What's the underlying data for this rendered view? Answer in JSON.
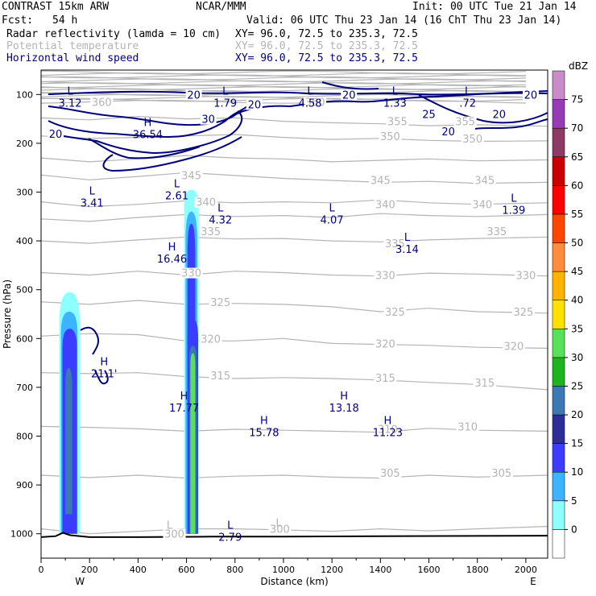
{
  "header": {
    "model": "CONTRAST 15km ARW",
    "center": "NCAR/MMM",
    "init": "Init: 00 UTC Tue 21 Jan 14",
    "fcst_label": "Fcst:",
    "fcst_value": "54 h",
    "valid": "Valid: 06 UTC Thu 23 Jan 14 (16 ChT Thu 23 Jan 14)",
    "fields": [
      {
        "name": "Radar reflectivity (lamda = 10 cm)",
        "xy": "XY=  96.0, 72.5 to 235.3, 72.5",
        "color": "#000000"
      },
      {
        "name": "Potential temperature",
        "xy": "XY=  96.0, 72.5 to 235.3, 72.5",
        "color": "#b4b4b4"
      },
      {
        "name": "Horizontal wind speed",
        "xy": "XY=  96.0, 72.5 to 235.3, 72.5",
        "color": "#00007a"
      }
    ]
  },
  "chart_data": {
    "type": "cross-section",
    "xlabel": "Distance (km)",
    "ylabel": "Pressure (hPa)",
    "xlim": [
      0,
      2090
    ],
    "ylim": [
      1050,
      50
    ],
    "x_ticks": [
      0,
      200,
      400,
      600,
      800,
      1000,
      1200,
      1400,
      1600,
      1800,
      2000
    ],
    "y_ticks": [
      100,
      200,
      300,
      400,
      500,
      600,
      700,
      800,
      900,
      1000
    ],
    "x_end_labels": {
      "left": "W",
      "right": "E"
    },
    "colorbar": {
      "unit": "dBZ",
      "levels": [
        0,
        5,
        10,
        15,
        20,
        25,
        30,
        35,
        40,
        45,
        50,
        55,
        60,
        65,
        70,
        75
      ],
      "colors": [
        "#ffffff",
        "#8effff",
        "#3cb4ff",
        "#3c3cff",
        "#2d2d96",
        "#3c78b4",
        "#1eb41e",
        "#5ae15a",
        "#ffe100",
        "#ffb400",
        "#ff8c3c",
        "#ff4600",
        "#ff0000",
        "#c80000",
        "#8c3c64",
        "#963cb4",
        "#c88cc8"
      ]
    },
    "theta_labels": [
      {
        "v": "360",
        "x": 250,
        "p": 120
      },
      {
        "v": "360",
        "x": 1130,
        "p": 120
      },
      {
        "v": "355",
        "x": 1470,
        "p": 160
      },
      {
        "v": "355",
        "x": 1750,
        "p": 160
      },
      {
        "v": "350",
        "x": 1440,
        "p": 190
      },
      {
        "v": "350",
        "x": 1780,
        "p": 195
      },
      {
        "v": "345",
        "x": 620,
        "p": 270
      },
      {
        "v": "345",
        "x": 1400,
        "p": 280
      },
      {
        "v": "345",
        "x": 1830,
        "p": 280
      },
      {
        "v": "340",
        "x": 680,
        "p": 325
      },
      {
        "v": "340",
        "x": 1420,
        "p": 330
      },
      {
        "v": "340",
        "x": 1820,
        "p": 330
      },
      {
        "v": "335",
        "x": 700,
        "p": 385
      },
      {
        "v": "335",
        "x": 1460,
        "p": 410
      },
      {
        "v": "335",
        "x": 1880,
        "p": 385
      },
      {
        "v": "330",
        "x": 620,
        "p": 470
      },
      {
        "v": "330",
        "x": 1420,
        "p": 475
      },
      {
        "v": "330",
        "x": 2000,
        "p": 475
      },
      {
        "v": "325",
        "x": 740,
        "p": 530
      },
      {
        "v": "325",
        "x": 1460,
        "p": 550
      },
      {
        "v": "325",
        "x": 1990,
        "p": 550
      },
      {
        "v": "320",
        "x": 700,
        "p": 605
      },
      {
        "v": "320",
        "x": 1420,
        "p": 615
      },
      {
        "v": "320",
        "x": 1950,
        "p": 620
      },
      {
        "v": "315",
        "x": 740,
        "p": 680
      },
      {
        "v": "315",
        "x": 1420,
        "p": 685
      },
      {
        "v": "315",
        "x": 1830,
        "p": 695
      },
      {
        "v": "310",
        "x": 1430,
        "p": 790
      },
      {
        "v": "310",
        "x": 1760,
        "p": 785
      },
      {
        "v": "305",
        "x": 1440,
        "p": 880
      },
      {
        "v": "305",
        "x": 1900,
        "p": 880
      },
      {
        "v": "300",
        "x": 550,
        "p": 1005
      },
      {
        "v": "300",
        "x": 985,
        "p": 995
      }
    ],
    "extrema": [
      {
        "t": "L",
        "v": "3.12",
        "x": 120,
        "p": 100,
        "c": "#00007a"
      },
      {
        "t": "L",
        "v": "1.79",
        "x": 760,
        "p": 100,
        "c": "#00007a"
      },
      {
        "t": "L",
        "v": "4.58",
        "x": 1110,
        "p": 100,
        "c": "#00007a"
      },
      {
        "t": "L",
        "v": "1.33",
        "x": 1460,
        "p": 100,
        "c": "#00007a"
      },
      {
        "t": "L",
        "v": ".72",
        "x": 1760,
        "p": 100,
        "c": "#00007a"
      },
      {
        "t": "H",
        "v": "36.54",
        "x": 440,
        "p": 165,
        "c": "#00007a"
      },
      {
        "t": "L",
        "v": "2.61",
        "x": 560,
        "p": 290,
        "c": "#00007a"
      },
      {
        "t": "L",
        "v": "3.41",
        "x": 210,
        "p": 305,
        "c": "#00007a"
      },
      {
        "t": "L",
        "v": "4.32",
        "x": 740,
        "p": 340,
        "c": "#00007a"
      },
      {
        "t": "L",
        "v": "4.07",
        "x": 1200,
        "p": 340,
        "c": "#00007a"
      },
      {
        "t": "L",
        "v": "1.39",
        "x": 1950,
        "p": 320,
        "c": "#00007a"
      },
      {
        "t": "L",
        "v": "3.14",
        "x": 1510,
        "p": 400,
        "c": "#00007a"
      },
      {
        "t": "H",
        "v": "16.46",
        "x": 540,
        "p": 420,
        "c": "#00007a"
      },
      {
        "t": "H",
        "v": "21.1'",
        "x": 260,
        "p": 655,
        "c": "#00007a"
      },
      {
        "t": "H",
        "v": "17.77",
        "x": 590,
        "p": 725,
        "c": "#00007a"
      },
      {
        "t": "H",
        "v": "13.18",
        "x": 1250,
        "p": 725,
        "c": "#00007a"
      },
      {
        "t": "H",
        "v": "15.78",
        "x": 920,
        "p": 775,
        "c": "#00007a"
      },
      {
        "t": "H",
        "v": "11.23",
        "x": 1430,
        "p": 775,
        "c": "#00007a"
      },
      {
        "t": "L",
        "v": "2.79",
        "x": 780,
        "p": 990,
        "c": "#00007a"
      },
      {
        "t": "L",
        "v": "",
        "x": 530,
        "p": 990,
        "c": "#b4b4b4"
      },
      {
        "t": "L",
        "v": "",
        "x": 980,
        "p": 985,
        "c": "#b4b4b4"
      }
    ],
    "wind_labels": [
      {
        "v": "20",
        "x": 630,
        "p": 105
      },
      {
        "v": "20",
        "x": 1270,
        "p": 105
      },
      {
        "v": "20",
        "x": 2020,
        "p": 105
      },
      {
        "v": "20",
        "x": 880,
        "p": 125
      },
      {
        "v": "25",
        "x": 1600,
        "p": 145
      },
      {
        "v": "20",
        "x": 1890,
        "p": 145
      },
      {
        "v": "30",
        "x": 690,
        "p": 155
      },
      {
        "v": "20",
        "x": 60,
        "p": 185
      },
      {
        "v": "20",
        "x": 1680,
        "p": 180
      }
    ]
  }
}
